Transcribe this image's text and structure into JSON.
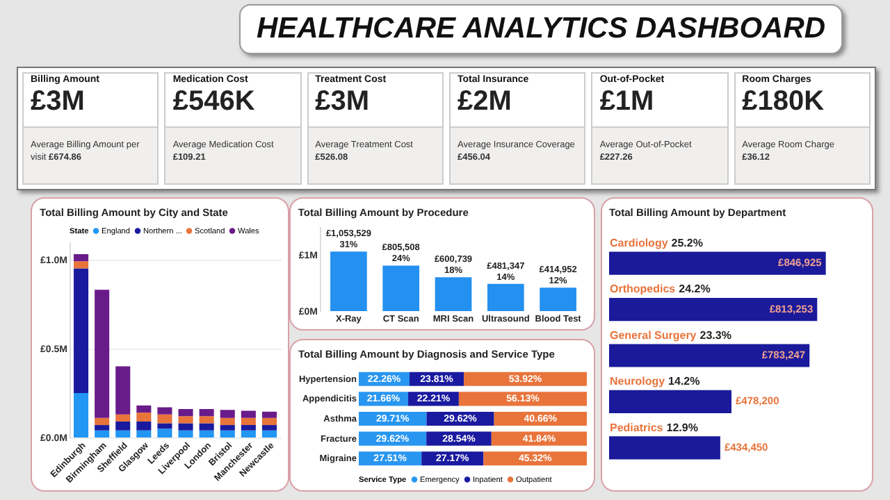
{
  "chart_data": [
    {
      "type": "other",
      "title": "HEALTHCARE ANALYTICS DASHBOARD",
      "annotations": [
        "Billing Amount",
        "£3M",
        "Average Billing Amount per visit",
        "£674.86",
        "Medication Cost",
        "£546K",
        "Average Medication Cost",
        "£109.21",
        "Treatment Cost",
        "£3M",
        "Average Treatment Cost",
        "£526.08",
        "Total Insurance",
        "£2M",
        "Average Insurance Coverage",
        "£456.04",
        "Out-of-Pocket",
        "£1M",
        "Average Out-of-Pocket",
        "£227.26",
        "Room Charges",
        "£180K",
        "Average Room Charge",
        "£36.12"
      ]
    },
    {
      "type": "bar",
      "title": "Total Billing Amount by City and State",
      "legend_title": "State",
      "legend": "top",
      "stacked": true,
      "grid": "y",
      "categories": [
        "Edinburgh",
        "Birmingham",
        "Sheffield",
        "Glasgow",
        "Leeds",
        "Liverpool",
        "London",
        "Bristol",
        "Manchester",
        "Newcastle"
      ],
      "series": [
        {
          "name": "England",
          "color": "#2196f3",
          "values": [
            250000,
            40000,
            40000,
            40000,
            50000,
            40000,
            40000,
            40000,
            40000,
            40000
          ]
        },
        {
          "name": "Northern ...",
          "color": "#1a1a9e",
          "values": [
            700000,
            30000,
            50000,
            50000,
            30000,
            40000,
            40000,
            30000,
            30000,
            30000
          ]
        },
        {
          "name": "Scotland",
          "color": "#e8743b",
          "values": [
            40000,
            40000,
            40000,
            50000,
            50000,
            40000,
            40000,
            40000,
            40000,
            40000
          ]
        },
        {
          "name": "Wales",
          "color": "#6a1b8a",
          "values": [
            40000,
            720000,
            270000,
            40000,
            40000,
            40000,
            40000,
            45000,
            40000,
            35000
          ]
        }
      ],
      "ylim": [
        0,
        1100000
      ],
      "yticks": [
        {
          "value": 0,
          "label": "£0.0M"
        },
        {
          "value": 500000,
          "label": "£0.5M"
        },
        {
          "value": 1000000,
          "label": "£1.0M"
        }
      ]
    },
    {
      "type": "bar",
      "title": "Total Billing Amount by Procedure",
      "categories": [
        "X-Ray",
        "CT Scan",
        "MRI Scan",
        "Ultrasound",
        "Blood Test"
      ],
      "values": [
        1053529,
        805508,
        600739,
        481347,
        414952
      ],
      "color": "#2490f0",
      "value_labels": [
        "£1,053,529\n31%",
        "£805,508\n24%",
        "£600,739\n18%",
        "£481,347\n14%",
        "£414,952\n12%"
      ],
      "ylim": [
        0,
        1500000
      ],
      "yticks": [
        {
          "value": 0,
          "label": "£0M"
        },
        {
          "value": 1000000,
          "label": "£1M"
        }
      ]
    },
    {
      "type": "bar",
      "title": "Total Billing Amount by Diagnosis and Service Type",
      "orientation": "horizontal",
      "stacked": true,
      "legend_title": "Service Type",
      "legend": "bottom",
      "tick_labels": "y",
      "categories": [
        "Hypertension",
        "Appendicitis",
        "Asthma",
        "Fracture",
        "Migraine"
      ],
      "series": [
        {
          "name": "Emergency",
          "color": "#2896f0",
          "values": [
            22.26,
            21.66,
            29.71,
            29.62,
            27.51
          ],
          "value_labels": [
            "22.26%",
            "21.66%",
            "29.71%",
            "29.62%",
            "27.51%"
          ]
        },
        {
          "name": "Inpatient",
          "color": "#1a1aa0",
          "values": [
            23.81,
            22.21,
            29.62,
            28.54,
            27.17
          ],
          "value_labels": [
            "23.81%",
            "22.21%",
            "29.62%",
            "28.54%",
            "27.17%"
          ]
        },
        {
          "name": "Outpatient",
          "color": "#e8743b",
          "values": [
            53.92,
            56.13,
            40.66,
            41.84,
            45.32
          ],
          "value_labels": [
            "53.92%",
            "56.13%",
            "40.66%",
            "41.84%",
            "45.32%"
          ]
        }
      ],
      "xlim": [
        0,
        100
      ]
    },
    {
      "type": "bar",
      "title": "Total Billing Amount by Department",
      "orientation": "horizontal",
      "categories": [
        "Cardiology",
        "Orthopedics",
        "General Surgery",
        "Neurology",
        "Pediatrics"
      ],
      "values": [
        846925,
        813253,
        783247,
        478200,
        434450
      ],
      "color": "#1a1a9a",
      "value_labels": [
        "£846,925",
        "£813,253",
        "£783,247",
        "£478,200",
        "£434,450"
      ],
      "xlim": [
        0,
        1000000
      ],
      "annotations": [
        "25.2%",
        "24.2%",
        "23.3%",
        "14.2%",
        "12.9%"
      ]
    }
  ]
}
